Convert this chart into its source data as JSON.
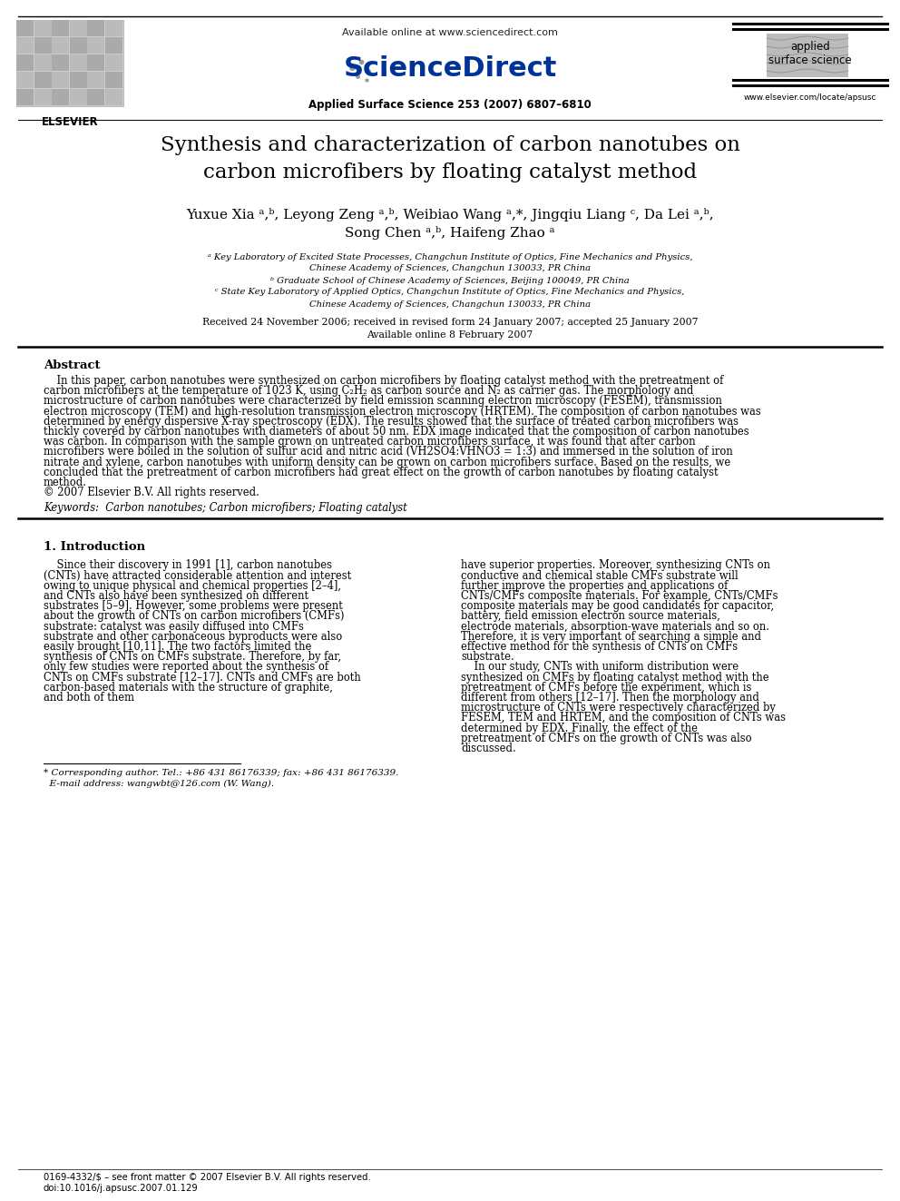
{
  "bg_color": "#ffffff",
  "header": {
    "available_online": "Available online at www.sciencedirect.com",
    "sciencedirect": "ScienceDirect",
    "journal_info": "Applied Surface Science 253 (2007) 6807–6810",
    "journal_name_line1": "applied",
    "journal_name_line2": "surface science",
    "journal_url": "www.elsevier.com/locate/apsusc",
    "publisher": "ELSEVIER"
  },
  "title": "Synthesis and characterization of carbon nanotubes on\ncarbon microfibers by floating catalyst method",
  "authors_line1": "Yuxue Xia ᵃ,ᵇ, Leyong Zeng ᵃ,ᵇ, Weibiao Wang ᵃ,*, Jingqiu Liang ᶜ, Da Lei ᵃ,ᵇ,",
  "authors_line2": "Song Chen ᵃ,ᵇ, Haifeng Zhao ᵃ",
  "affiliations": [
    "ᵃ Key Laboratory of Excited State Processes, Changchun Institute of Optics, Fine Mechanics and Physics,",
    "Chinese Academy of Sciences, Changchun 130033, PR China",
    "ᵇ Graduate School of Chinese Academy of Sciences, Beijing 100049, PR China",
    "ᶜ State Key Laboratory of Applied Optics, Changchun Institute of Optics, Fine Mechanics and Physics,",
    "Chinese Academy of Sciences, Changchun 130033, PR China"
  ],
  "dates": "Received 24 November 2006; received in revised form 24 January 2007; accepted 25 January 2007",
  "available": "Available online 8 February 2007",
  "abstract_title": "Abstract",
  "abstract_text": "    In this paper, carbon nanotubes were synthesized on carbon microfibers by floating catalyst method with the pretreatment of carbon microfibers at the temperature of 1023 K, using C₂H₂ as carbon source and N₂ as carrier gas. The morphology and microstructure of carbon nanotubes were characterized by field emission scanning electron microscopy (FESEM), transmission electron microscopy (TEM) and high-resolution transmission electron microscopy (HRTEM). The composition of carbon nanotubes was determined by energy dispersive X-ray spectroscopy (EDX). The results showed that the surface of treated carbon microfibers was thickly covered by carbon nanotubes with diameters of about 50 nm. EDX image indicated that the composition of carbon nanotubes was carbon. In comparison with the sample grown on untreated carbon microfibers surface, it was found that after carbon microfibers were boiled in the solution of sulfur acid and nitric acid (VH2SO4:VHNO3 = 1:3) and immersed in the solution of iron nitrate and xylene, carbon nanotubes with uniform density can be grown on carbon microfibers surface. Based on the results, we concluded that the pretreatment of carbon microfibers had great effect on the growth of carbon nanotubes by floating catalyst method.\n© 2007 Elsevier B.V. All rights reserved.",
  "keywords": "Keywords:  Carbon nanotubes; Carbon microfibers; Floating catalyst",
  "section1_title": "1. Introduction",
  "section1_left": "    Since their discovery in 1991 [1], carbon nanotubes (CNTs) have attracted considerable attention and interest owing to unique physical and chemical properties [2–4], and CNTs also have been synthesized on different substrates [5–9]. However, some problems were present about the growth of CNTs on carbon microfibers (CMFs) substrate: catalyst was easily diffused into CMFs substrate and other carbonaceous byproducts were also easily brought [10,11]. The two factors limited the synthesis of CNTs on CMFs substrate. Therefore, by far, only few studies were reported about the synthesis of CNTs on CMFs substrate [12–17]. CNTs and CMFs are both carbon-based materials with the structure of graphite, and both of them",
  "section1_right": "have superior properties. Moreover, synthesizing CNTs on conductive and chemical stable CMFs substrate will further improve the properties and applications of CNTs/CMFs composite materials. For example, CNTs/CMFs composite materials may be good candidates for capacitor, battery, field emission electron source materials, electrode materials, absorption-wave materials and so on. Therefore, it is very important of searching a simple and effective method for the synthesis of CNTs on CMFs substrate.\n    In our study, CNTs with uniform distribution were synthesized on CMFs by floating catalyst method with the pretreatment of CMFs before the experiment, which is different from others [12–17]. Then the morphology and microstructure of CNTs were respectively characterized by FESEM, TEM and HRTEM, and the composition of CNTs was determined by EDX. Finally, the effect of the pretreatment of CMFs on the growth of CNTs was also discussed.",
  "footnote": "* Corresponding author. Tel.: +86 431 86176339; fax: +86 431 86176339.\n  E-mail address: wangwbt@126.com (W. Wang).",
  "footer_line1": "0169-4332/$ – see front matter © 2007 Elsevier B.V. All rights reserved.",
  "footer_line2": "doi:10.1016/j.apsusc.2007.01.129"
}
